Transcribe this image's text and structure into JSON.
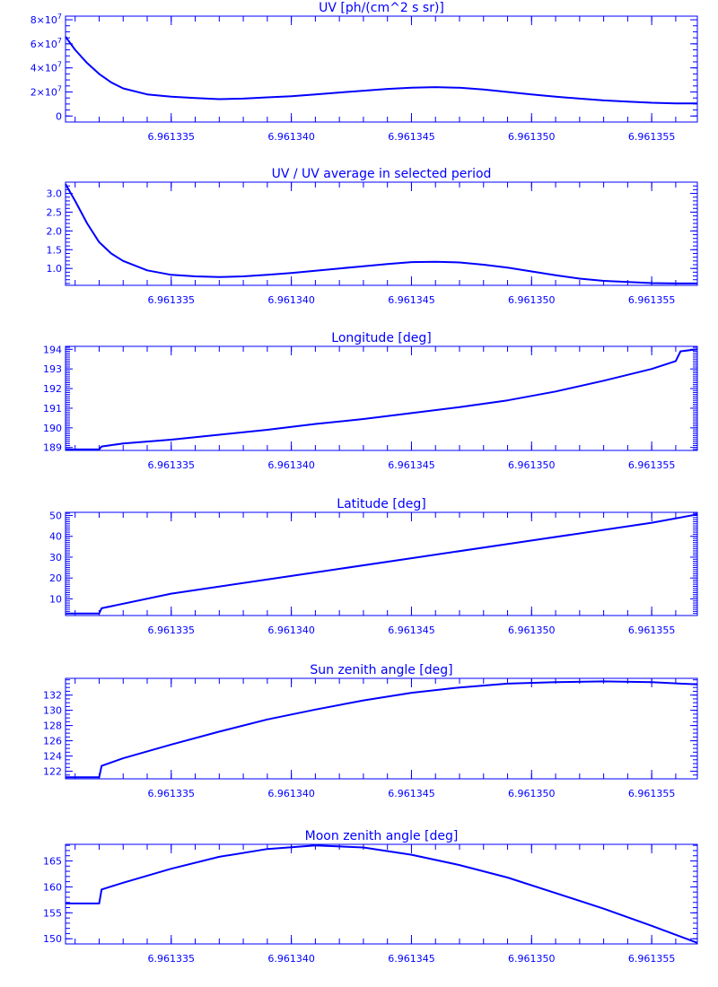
{
  "chart_data": [
    {
      "type": "line",
      "title": "UV [ph/(cm^2 s sr)]",
      "x_ticks": [
        "6.961335",
        "6.961340",
        "6.961345",
        "6.961350",
        "6.961355"
      ],
      "x_tick_values": [
        6.961335,
        6.96134,
        6.961345,
        6.96135,
        6.961355
      ],
      "xlim": [
        6.9613306,
        6.9613569
      ],
      "y_ticks": [
        {
          "value": 0,
          "label": "0"
        },
        {
          "value": 20000000,
          "label": "2×10",
          "exp": "7"
        },
        {
          "value": 40000000,
          "label": "4×10",
          "exp": "7"
        },
        {
          "value": 60000000,
          "label": "6×10",
          "exp": "7"
        },
        {
          "value": 80000000,
          "label": "8×10",
          "exp": "7"
        }
      ],
      "ylim": [
        -5000000,
        83000000
      ],
      "minor_y_step": 5000000,
      "x": [
        6.9613306,
        6.961331,
        6.9613315,
        6.961332,
        6.9613325,
        6.961333,
        6.961334,
        6.961335,
        6.961336,
        6.961337,
        6.961338,
        6.961339,
        6.96134,
        6.961341,
        6.961342,
        6.961343,
        6.961344,
        6.961345,
        6.961346,
        6.961347,
        6.961348,
        6.961349,
        6.96135,
        6.961351,
        6.961352,
        6.961353,
        6.961354,
        6.961355,
        6.961356,
        6.9613569
      ],
      "y": [
        66000000,
        55000000,
        44000000,
        35000000,
        28000000,
        23000000,
        18000000,
        16000000,
        15000000,
        14000000,
        14500000,
        15500000,
        16500000,
        18000000,
        19500000,
        21000000,
        22500000,
        23500000,
        24000000,
        23500000,
        22000000,
        20000000,
        18000000,
        16000000,
        14500000,
        13000000,
        12000000,
        11000000,
        10500000,
        10500000
      ]
    },
    {
      "type": "line",
      "title": "UV / UV average in selected period",
      "x_ticks": [
        "6.961335",
        "6.961340",
        "6.961345",
        "6.961350",
        "6.961355"
      ],
      "x_tick_values": [
        6.961335,
        6.96134,
        6.961345,
        6.96135,
        6.961355
      ],
      "xlim": [
        6.9613306,
        6.9613569
      ],
      "y_ticks": [
        {
          "value": 1.0,
          "label": "1.0"
        },
        {
          "value": 1.5,
          "label": "1.5"
        },
        {
          "value": 2.0,
          "label": "2.0"
        },
        {
          "value": 2.5,
          "label": "2.5"
        },
        {
          "value": 3.0,
          "label": "3.0"
        }
      ],
      "ylim": [
        0.55,
        3.3
      ],
      "minor_y_step": 0.1,
      "x": [
        6.9613306,
        6.961331,
        6.9613315,
        6.961332,
        6.9613325,
        6.961333,
        6.961334,
        6.961335,
        6.961336,
        6.961337,
        6.961338,
        6.961339,
        6.96134,
        6.961341,
        6.961342,
        6.961343,
        6.961344,
        6.961345,
        6.961346,
        6.961347,
        6.961348,
        6.961349,
        6.96135,
        6.961351,
        6.961352,
        6.961353,
        6.961354,
        6.961355,
        6.961356,
        6.9613569
      ],
      "y": [
        3.25,
        2.8,
        2.2,
        1.7,
        1.4,
        1.2,
        0.95,
        0.83,
        0.79,
        0.77,
        0.79,
        0.83,
        0.88,
        0.94,
        1.0,
        1.06,
        1.12,
        1.17,
        1.18,
        1.16,
        1.1,
        1.02,
        0.92,
        0.82,
        0.73,
        0.67,
        0.64,
        0.61,
        0.6,
        0.6
      ]
    },
    {
      "type": "line",
      "title": "Longitude [deg]",
      "x_ticks": [
        "6.961335",
        "6.961340",
        "6.961345",
        "6.961350",
        "6.961355"
      ],
      "x_tick_values": [
        6.961335,
        6.96134,
        6.961345,
        6.96135,
        6.961355
      ],
      "xlim": [
        6.9613306,
        6.9613569
      ],
      "y_ticks": [
        {
          "value": 189,
          "label": "189"
        },
        {
          "value": 190,
          "label": "190"
        },
        {
          "value": 191,
          "label": "191"
        },
        {
          "value": 192,
          "label": "192"
        },
        {
          "value": 193,
          "label": "193"
        },
        {
          "value": 194,
          "label": "194"
        }
      ],
      "ylim": [
        188.85,
        194.15
      ],
      "minor_y_step": 0.1,
      "x": [
        6.9613306,
        6.961332,
        6.9613321,
        6.9613325,
        6.961333,
        6.961335,
        6.961337,
        6.961339,
        6.961341,
        6.961343,
        6.961345,
        6.961347,
        6.961349,
        6.961351,
        6.961353,
        6.961355,
        6.961356,
        6.9613562,
        6.9613569
      ],
      "y": [
        188.9,
        188.9,
        189.05,
        189.12,
        189.2,
        189.4,
        189.65,
        189.9,
        190.2,
        190.45,
        190.75,
        191.05,
        191.4,
        191.85,
        192.4,
        193.0,
        193.4,
        193.9,
        194.0
      ]
    },
    {
      "type": "line",
      "title": "Latitude [deg]",
      "x_ticks": [
        "6.961335",
        "6.961340",
        "6.961345",
        "6.961350",
        "6.961355"
      ],
      "x_tick_values": [
        6.961335,
        6.96134,
        6.961345,
        6.96135,
        6.961355
      ],
      "xlim": [
        6.9613306,
        6.9613569
      ],
      "y_ticks": [
        {
          "value": 10,
          "label": "10"
        },
        {
          "value": 20,
          "label": "20"
        },
        {
          "value": 30,
          "label": "30"
        },
        {
          "value": 40,
          "label": "40"
        },
        {
          "value": 50,
          "label": "50"
        }
      ],
      "ylim": [
        2,
        51.5
      ],
      "minor_y_step": 1,
      "x": [
        6.9613306,
        6.961332,
        6.9613321,
        6.961335,
        6.96134,
        6.961345,
        6.96135,
        6.961355,
        6.9613569
      ],
      "y": [
        3,
        3,
        5.5,
        12.5,
        21,
        29.5,
        38,
        46.5,
        50.5
      ]
    },
    {
      "type": "line",
      "title": "Sun zenith angle [deg]",
      "x_ticks": [
        "6.961335",
        "6.961340",
        "6.961345",
        "6.961350",
        "6.961355"
      ],
      "x_tick_values": [
        6.961335,
        6.96134,
        6.961345,
        6.96135,
        6.961355
      ],
      "xlim": [
        6.9613306,
        6.9613569
      ],
      "y_ticks": [
        {
          "value": 122,
          "label": "122"
        },
        {
          "value": 124,
          "label": "124"
        },
        {
          "value": 126,
          "label": "126"
        },
        {
          "value": 128,
          "label": "128"
        },
        {
          "value": 130,
          "label": "130"
        },
        {
          "value": 132,
          "label": "132"
        }
      ],
      "ylim": [
        121,
        134.2
      ],
      "minor_y_step": 0.5,
      "x": [
        6.9613306,
        6.961332,
        6.9613321,
        6.961333,
        6.961335,
        6.961337,
        6.961339,
        6.961341,
        6.961343,
        6.961345,
        6.961347,
        6.961349,
        6.961351,
        6.961353,
        6.961355,
        6.9613569
      ],
      "y": [
        121.2,
        121.2,
        122.7,
        123.7,
        125.5,
        127.2,
        128.8,
        130.1,
        131.3,
        132.3,
        133.0,
        133.5,
        133.7,
        133.8,
        133.7,
        133.4
      ]
    },
    {
      "type": "line",
      "title": "Moon zenith angle [deg]",
      "x_ticks": [
        "6.961335",
        "6.961340",
        "6.961345",
        "6.961350",
        "6.961355"
      ],
      "x_tick_values": [
        6.961335,
        6.96134,
        6.961345,
        6.96135,
        6.961355
      ],
      "xlim": [
        6.9613306,
        6.9613569
      ],
      "y_ticks": [
        {
          "value": 150,
          "label": "150"
        },
        {
          "value": 155,
          "label": "155"
        },
        {
          "value": 160,
          "label": "160"
        },
        {
          "value": 165,
          "label": "165"
        }
      ],
      "ylim": [
        149,
        168.2
      ],
      "minor_y_step": 1,
      "x": [
        6.9613306,
        6.961332,
        6.9613321,
        6.961333,
        6.961335,
        6.961337,
        6.961339,
        6.961341,
        6.961343,
        6.961345,
        6.961347,
        6.961349,
        6.961351,
        6.961353,
        6.961355,
        6.9613569
      ],
      "y": [
        156.8,
        156.8,
        159.5,
        160.8,
        163.5,
        165.8,
        167.3,
        168.0,
        167.6,
        166.2,
        164.2,
        161.8,
        158.8,
        155.8,
        152.5,
        149.2
      ]
    }
  ]
}
